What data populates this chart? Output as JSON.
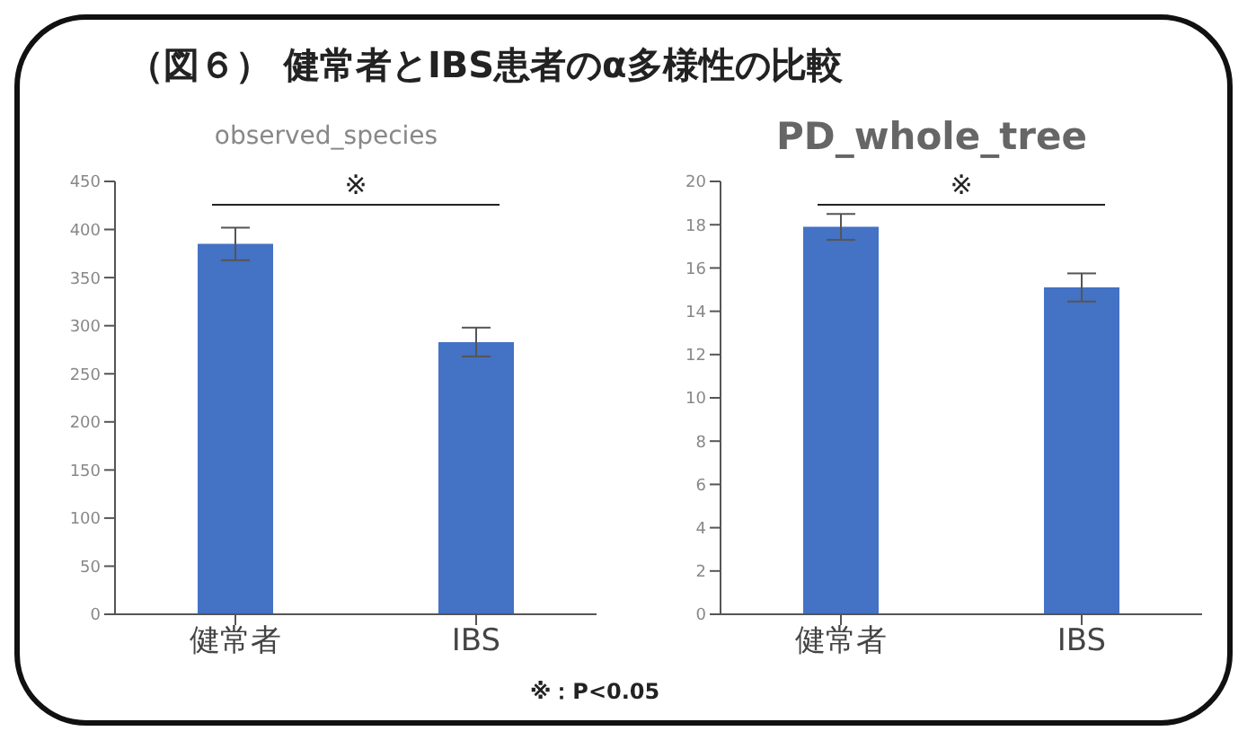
{
  "chart_data": [
    {
      "type": "bar",
      "title": "（図６） 健常者とIBS患者のα多様性の比較",
      "subtitle": "observed_species",
      "categories": [
        "健常者",
        "IBS"
      ],
      "values": [
        385,
        283
      ],
      "errors": [
        17,
        15
      ],
      "color": "#4472c4",
      "ylim": [
        0,
        450
      ],
      "yticks": [
        0,
        50,
        100,
        150,
        200,
        250,
        300,
        350,
        400,
        450
      ],
      "grid": false,
      "annotations": [
        "※"
      ]
    },
    {
      "type": "bar",
      "title": "PD_whole_tree",
      "categories": [
        "健常者",
        "IBS"
      ],
      "values": [
        17.9,
        15.1
      ],
      "errors": [
        0.6,
        0.65
      ],
      "color": "#4472c4",
      "ylim": [
        0,
        20
      ],
      "yticks": [
        0,
        2,
        4,
        6,
        8,
        10,
        12,
        14,
        16,
        18,
        20
      ],
      "grid": false,
      "annotations": [
        "※",
        "※：P<0.05"
      ]
    }
  ]
}
